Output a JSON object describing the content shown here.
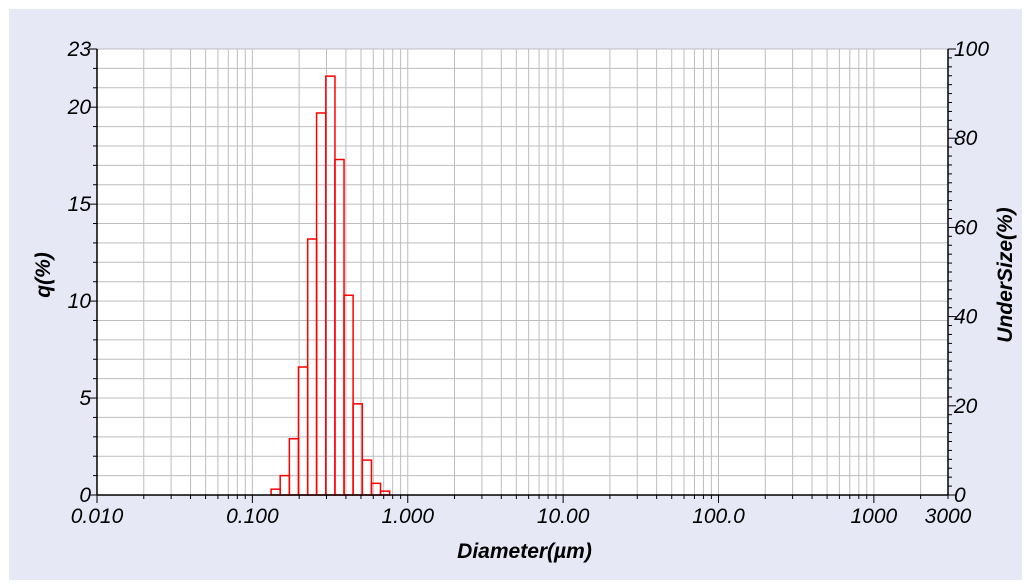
{
  "chart_data": {
    "type": "bar",
    "xlabel": "Diameter(µm)",
    "ylabel": "q(%)",
    "y2label": "UnderSize(%)",
    "x_scale": "log",
    "xlim": [
      0.01,
      3000
    ],
    "ylim": [
      0,
      23
    ],
    "y2lim": [
      0,
      100
    ],
    "grid": true,
    "colors": {
      "background": "#e6e8f6",
      "bars": "#ff0000",
      "grid": "#bdbdbd"
    },
    "x_ticks": [
      {
        "value": 0.01,
        "label": "0.010"
      },
      {
        "value": 0.1,
        "label": "0.100"
      },
      {
        "value": 1,
        "label": "1.000"
      },
      {
        "value": 10,
        "label": "10.00"
      },
      {
        "value": 100,
        "label": "100.0"
      },
      {
        "value": 1000,
        "label": "1000"
      },
      {
        "value": 3000,
        "label": "3000"
      }
    ],
    "y_ticks": [
      {
        "value": 0,
        "label": "0"
      },
      {
        "value": 5,
        "label": "5"
      },
      {
        "value": 10,
        "label": "10"
      },
      {
        "value": 15,
        "label": "15"
      },
      {
        "value": 20,
        "label": "20"
      },
      {
        "value": 23,
        "label": "23"
      }
    ],
    "y2_ticks": [
      {
        "value": 0,
        "label": "0"
      },
      {
        "value": 20,
        "label": "20"
      },
      {
        "value": 40,
        "label": "40"
      },
      {
        "value": 60,
        "label": "60"
      },
      {
        "value": 80,
        "label": "80"
      },
      {
        "value": 100,
        "label": "100"
      }
    ],
    "bins": [
      {
        "from": 0.132,
        "to": 0.151,
        "q": 0.3
      },
      {
        "from": 0.151,
        "to": 0.173,
        "q": 1.0
      },
      {
        "from": 0.173,
        "to": 0.198,
        "q": 2.9
      },
      {
        "from": 0.198,
        "to": 0.227,
        "q": 6.6
      },
      {
        "from": 0.227,
        "to": 0.259,
        "q": 13.2
      },
      {
        "from": 0.259,
        "to": 0.297,
        "q": 19.7
      },
      {
        "from": 0.297,
        "to": 0.34,
        "q": 21.6
      },
      {
        "from": 0.34,
        "to": 0.389,
        "q": 17.3
      },
      {
        "from": 0.389,
        "to": 0.445,
        "q": 10.3
      },
      {
        "from": 0.445,
        "to": 0.51,
        "q": 4.7
      },
      {
        "from": 0.51,
        "to": 0.584,
        "q": 1.8
      },
      {
        "from": 0.584,
        "to": 0.668,
        "q": 0.6
      },
      {
        "from": 0.668,
        "to": 0.765,
        "q": 0.2
      }
    ]
  }
}
